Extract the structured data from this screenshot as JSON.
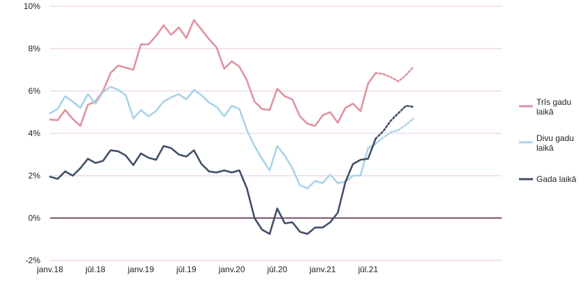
{
  "chart_data": {
    "type": "line",
    "x_start": "2018-01",
    "x_tick_labels": [
      "janv.18",
      "jūl.18",
      "janv.19",
      "jūl.19",
      "janv.20",
      "jūl.20",
      "janv.21",
      "jūl.21"
    ],
    "y_tick_labels": [
      "-2%",
      "0%",
      "2%",
      "4%",
      "6%",
      "8%",
      "10%"
    ],
    "ylim": [
      -2,
      10
    ],
    "y_ticks": [
      -2,
      0,
      2,
      4,
      6,
      8,
      10
    ],
    "grid": true,
    "legend_position": "right",
    "series": [
      {
        "name": "Trīs gadu laikā",
        "color": "#e0929d",
        "values": [
          4.65,
          4.62,
          5.1,
          4.68,
          4.35,
          5.35,
          5.5,
          6.0,
          6.85,
          7.2,
          7.1,
          7.0,
          8.2,
          8.2,
          8.6,
          9.1,
          8.65,
          9.0,
          8.5,
          9.35,
          8.9,
          8.45,
          8.05,
          7.05,
          7.4,
          7.15,
          6.5,
          5.5,
          5.15,
          5.1,
          6.1,
          5.75,
          5.6,
          4.8,
          4.45,
          4.35,
          4.85,
          5.0,
          4.5,
          5.2,
          5.4,
          5.05,
          6.35,
          6.85
        ],
        "forecast": [
          6.85,
          6.8,
          6.65,
          6.45,
          6.75,
          7.15
        ]
      },
      {
        "name": "Divu gadu laikā",
        "color": "#a8d3e8",
        "values": [
          4.95,
          5.15,
          5.75,
          5.5,
          5.2,
          5.85,
          5.4,
          5.95,
          6.2,
          6.05,
          5.8,
          4.7,
          5.1,
          4.8,
          5.05,
          5.5,
          5.7,
          5.85,
          5.6,
          6.05,
          5.8,
          5.45,
          5.25,
          4.8,
          5.3,
          5.15,
          4.15,
          3.4,
          2.8,
          2.25,
          3.4,
          2.95,
          2.35,
          1.55,
          1.4,
          1.75,
          1.65,
          2.05,
          1.65,
          1.7,
          2.0,
          2.0,
          3.3,
          3.5
        ],
        "forecast": [
          3.5,
          3.8,
          4.05,
          4.15,
          4.4,
          4.7
        ]
      },
      {
        "name": "Gada laikā",
        "color": "#3f4f66",
        "values": [
          1.95,
          1.85,
          2.2,
          2.0,
          2.35,
          2.8,
          2.6,
          2.7,
          3.2,
          3.15,
          2.95,
          2.5,
          3.05,
          2.85,
          2.75,
          3.4,
          3.3,
          3.0,
          2.9,
          3.2,
          2.55,
          2.2,
          2.15,
          2.25,
          2.15,
          2.25,
          1.4,
          0.0,
          -0.55,
          -0.75,
          0.45,
          -0.25,
          -0.2,
          -0.65,
          -0.75,
          -0.45,
          -0.45,
          -0.2,
          0.25,
          1.7,
          2.55,
          2.75,
          2.8,
          3.75
        ],
        "forecast": [
          3.75,
          4.1,
          4.6,
          4.95,
          5.3,
          5.25
        ]
      }
    ]
  }
}
